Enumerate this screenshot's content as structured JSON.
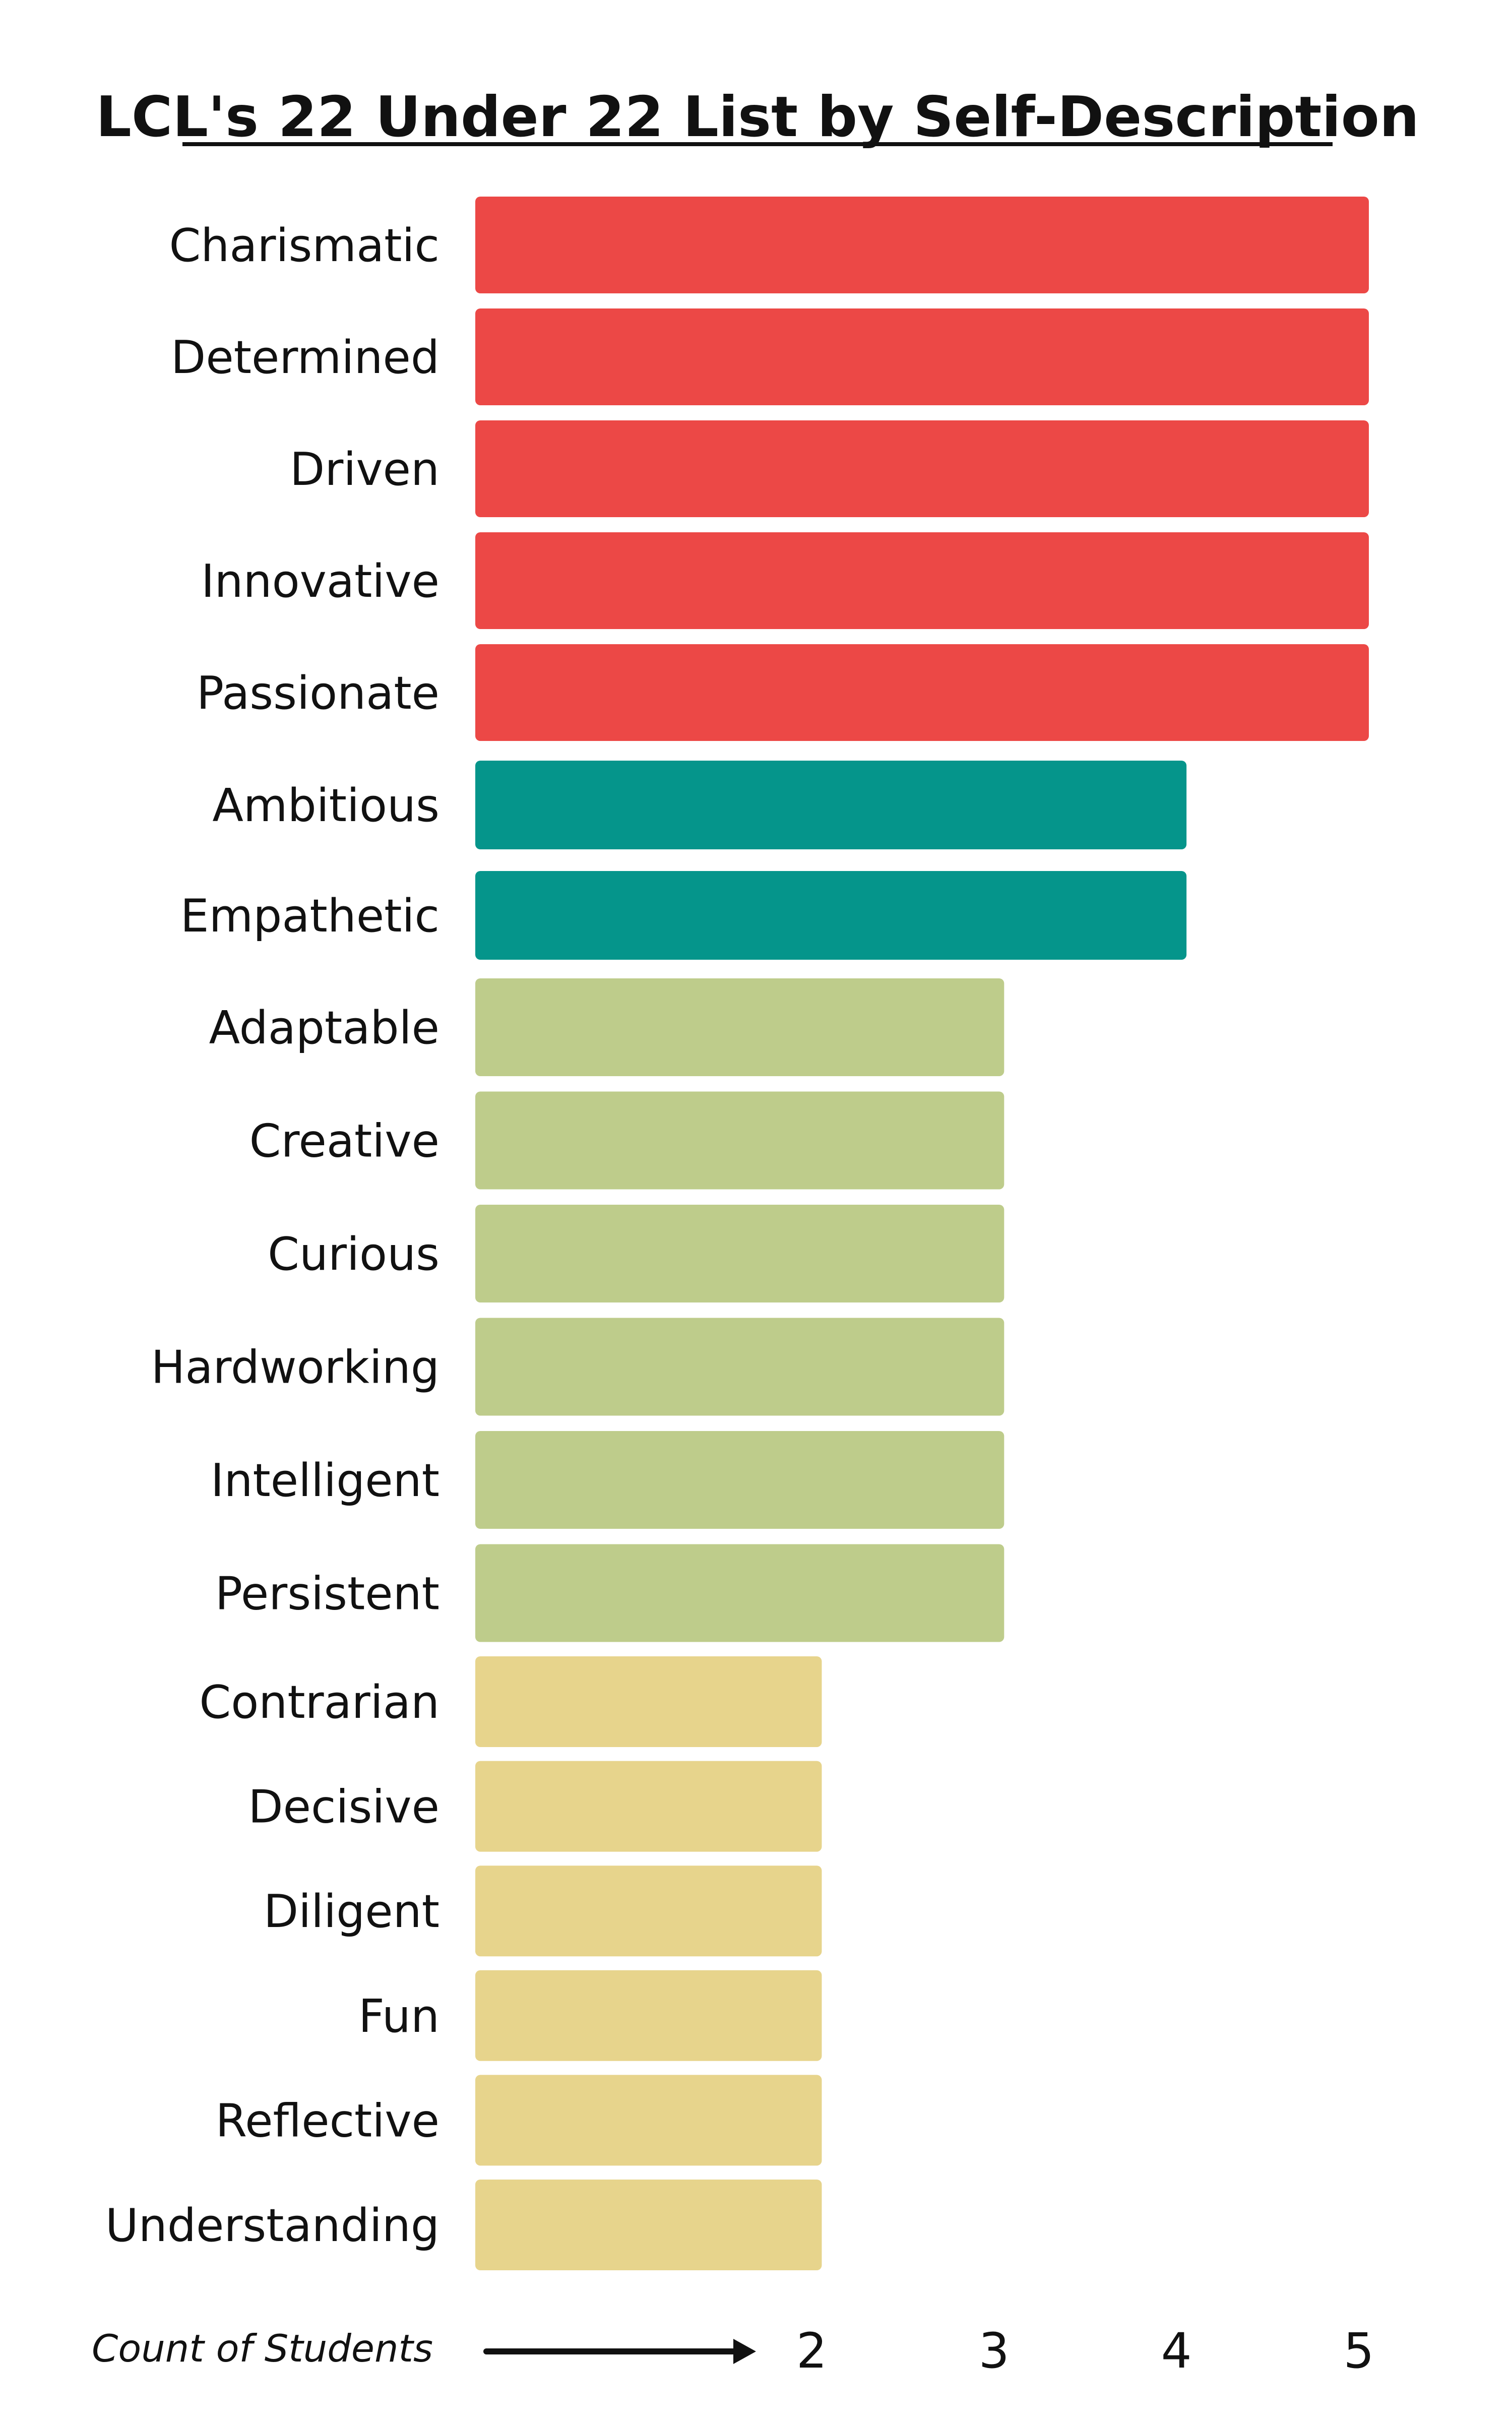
{
  "chart_data": {
    "type": "bar",
    "orientation": "horizontal",
    "title": "LCL's 22 Under 22 List by Self-Description",
    "xlabel": "Count of Students",
    "categories": [
      "Charismatic",
      "Determined",
      "Driven",
      "Innovative",
      "Passionate",
      "Ambitious",
      "Empathetic",
      "Adaptable",
      "Creative",
      "Curious",
      "Hardworking",
      "Intelligent",
      "Persistent",
      "Contrarian",
      "Decisive",
      "Diligent",
      "Fun",
      "Reflective",
      "Understanding"
    ],
    "values": [
      5,
      5,
      5,
      5,
      5,
      4,
      4,
      3,
      3,
      3,
      3,
      3,
      3,
      2,
      2,
      2,
      2,
      2,
      2
    ],
    "xticks": [
      "2",
      "3",
      "4",
      "5"
    ],
    "xlim": [
      0.1,
      5
    ],
    "grid": false,
    "legend": "none",
    "value_colors": {
      "5": "#ec4846",
      "4": "#05958b",
      "3": "#becc8b",
      "2": "#e7d48c"
    }
  }
}
